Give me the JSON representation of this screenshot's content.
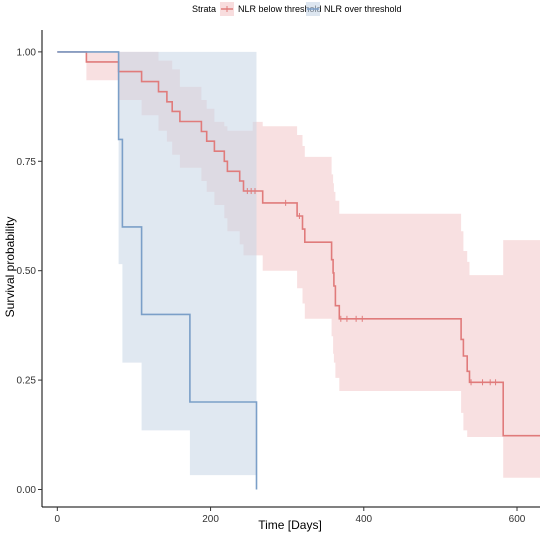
{
  "chart_data": {
    "type": "line",
    "subtype": "kaplan-meier step",
    "xlabel": "Time [Days]",
    "ylabel": "Survival probability",
    "xlim": [
      -20,
      630
    ],
    "ylim": [
      -0.04,
      1.05
    ],
    "x_ticks": [
      0,
      200,
      400,
      600
    ],
    "y_ticks": [
      0,
      0.25,
      0.5,
      0.75,
      1.0
    ],
    "y_tick_labels": [
      "0.00",
      "0.25",
      "0.50",
      "0.75",
      "1.00"
    ],
    "grid": false,
    "legend": {
      "position": "top",
      "title": "Strata",
      "entries": [
        "NLR below threshold",
        "NLR over threshold"
      ]
    },
    "colors": {
      "NLR below threshold": "#e07b7b",
      "NLR over threshold": "#7b9fc8",
      "NLR below threshold band": "#f3c7c8",
      "NLR over threshold band": "#c6d5e6"
    },
    "series": [
      {
        "name": "NLR below threshold",
        "steps": [
          [
            0,
            1.0
          ],
          [
            38,
            0.977
          ],
          [
            80,
            0.955
          ],
          [
            110,
            0.932
          ],
          [
            132,
            0.909
          ],
          [
            143,
            0.886
          ],
          [
            150,
            0.864
          ],
          [
            160,
            0.841
          ],
          [
            188,
            0.818
          ],
          [
            195,
            0.796
          ],
          [
            205,
            0.773
          ],
          [
            218,
            0.75
          ],
          [
            222,
            0.727
          ],
          [
            238,
            0.705
          ],
          [
            243,
            0.682
          ],
          [
            268,
            0.655
          ],
          [
            313,
            0.625
          ],
          [
            320,
            0.595
          ],
          [
            323,
            0.565
          ],
          [
            358,
            0.525
          ],
          [
            360,
            0.495
          ],
          [
            361,
            0.465
          ],
          [
            363,
            0.42
          ],
          [
            368,
            0.39
          ],
          [
            378,
            0.39
          ],
          [
            525,
            0.39
          ],
          [
            527,
            0.343
          ],
          [
            530,
            0.305
          ],
          [
            535,
            0.27
          ],
          [
            538,
            0.245
          ],
          [
            580,
            0.245
          ],
          [
            582,
            0.123
          ],
          [
            630,
            0.123
          ]
        ],
        "lower": [
          [
            0,
            1.0
          ],
          [
            38,
            0.935
          ],
          [
            80,
            0.89
          ],
          [
            110,
            0.855
          ],
          [
            132,
            0.82
          ],
          [
            143,
            0.795
          ],
          [
            150,
            0.765
          ],
          [
            160,
            0.735
          ],
          [
            188,
            0.705
          ],
          [
            195,
            0.68
          ],
          [
            205,
            0.65
          ],
          [
            218,
            0.62
          ],
          [
            222,
            0.59
          ],
          [
            238,
            0.56
          ],
          [
            243,
            0.535
          ],
          [
            268,
            0.5
          ],
          [
            313,
            0.46
          ],
          [
            320,
            0.425
          ],
          [
            323,
            0.39
          ],
          [
            358,
            0.35
          ],
          [
            360,
            0.31
          ],
          [
            361,
            0.29
          ],
          [
            363,
            0.255
          ],
          [
            368,
            0.225
          ],
          [
            378,
            0.225
          ],
          [
            525,
            0.225
          ],
          [
            527,
            0.175
          ],
          [
            530,
            0.135
          ],
          [
            535,
            0.12
          ],
          [
            538,
            0.12
          ],
          [
            580,
            0.12
          ],
          [
            582,
            0.027
          ],
          [
            630,
            0.027
          ]
        ],
        "upper": [
          [
            0,
            1.0
          ],
          [
            38,
            1.0
          ],
          [
            110,
            1.0
          ],
          [
            132,
            0.98
          ],
          [
            150,
            0.96
          ],
          [
            160,
            0.92
          ],
          [
            188,
            0.89
          ],
          [
            195,
            0.87
          ],
          [
            205,
            0.84
          ],
          [
            218,
            0.83
          ],
          [
            222,
            0.82
          ],
          [
            238,
            0.82
          ],
          [
            243,
            0.82
          ],
          [
            255,
            0.84
          ],
          [
            268,
            0.83
          ],
          [
            313,
            0.81
          ],
          [
            320,
            0.785
          ],
          [
            323,
            0.76
          ],
          [
            358,
            0.72
          ],
          [
            360,
            0.7
          ],
          [
            361,
            0.68
          ],
          [
            363,
            0.66
          ],
          [
            368,
            0.63
          ],
          [
            378,
            0.63
          ],
          [
            525,
            0.63
          ],
          [
            527,
            0.59
          ],
          [
            530,
            0.545
          ],
          [
            535,
            0.52
          ],
          [
            538,
            0.49
          ],
          [
            580,
            0.49
          ],
          [
            582,
            0.57
          ],
          [
            630,
            0.57
          ]
        ],
        "censor_times": [
          248,
          253,
          258,
          298,
          316,
          370,
          378,
          390,
          398,
          540,
          555,
          565,
          572
        ]
      },
      {
        "name": "NLR over threshold",
        "steps": [
          [
            0,
            1.0
          ],
          [
            80,
            0.8
          ],
          [
            85,
            0.6
          ],
          [
            110,
            0.4
          ],
          [
            173,
            0.2
          ],
          [
            260,
            0.0
          ]
        ],
        "lower": [
          [
            0,
            1.0
          ],
          [
            80,
            0.515
          ],
          [
            85,
            0.29
          ],
          [
            110,
            0.135
          ],
          [
            173,
            0.033
          ],
          [
            260,
            0.033
          ]
        ],
        "upper": [
          [
            0,
            1.0
          ],
          [
            80,
            1.0
          ],
          [
            260,
            1.0
          ]
        ],
        "end_time": 260
      }
    ]
  }
}
